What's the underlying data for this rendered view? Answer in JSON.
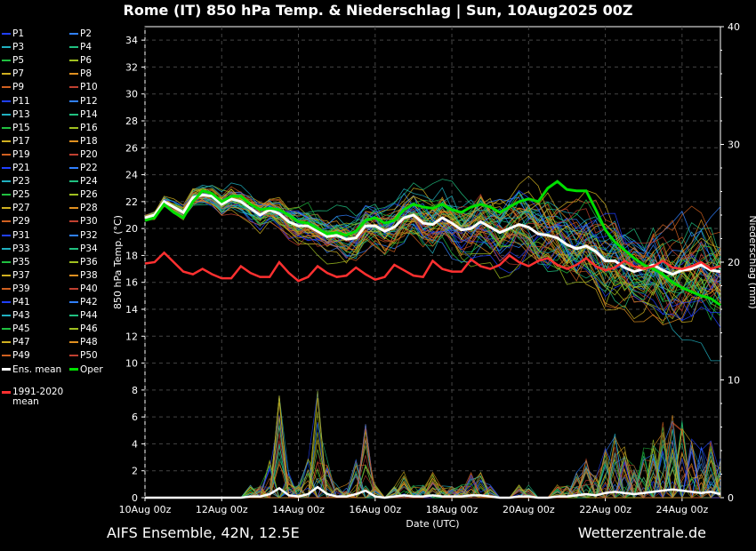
{
  "title": "Rome  (IT)  850 hPa Temp. & Niederschlag | Sun, 10Aug2025 00Z",
  "footer_left": "AIFS Ensemble, 42N, 12.5E",
  "footer_right": "Wetterzentrale.de",
  "legend": {
    "members": [
      "P1",
      "P2",
      "P3",
      "P4",
      "P5",
      "P6",
      "P7",
      "P8",
      "P9",
      "P10",
      "P11",
      "P12",
      "P13",
      "P14",
      "P15",
      "P16",
      "P17",
      "P18",
      "P19",
      "P20",
      "P21",
      "P22",
      "P23",
      "P24",
      "P25",
      "P26",
      "P27",
      "P28",
      "P29",
      "P30",
      "P31",
      "P32",
      "P33",
      "P34",
      "P35",
      "P36",
      "P37",
      "P38",
      "P39",
      "P40",
      "P41",
      "P42",
      "P43",
      "P44",
      "P45",
      "P46",
      "P47",
      "P48",
      "P49",
      "P50"
    ],
    "ens_mean": "Ens. mean",
    "oper": "Oper",
    "clim_line1": "1991-2020",
    "clim_line2": "mean"
  },
  "colors": {
    "ens_mean": "#ffffff",
    "oper": "#00e000",
    "clim": "#ff3030",
    "member_palette": [
      "#2040ff",
      "#3080ff",
      "#20b0c0",
      "#20c080",
      "#20c040",
      "#a0c020",
      "#d0b020",
      "#e09020",
      "#d06020",
      "#c04030"
    ]
  },
  "chart_data": {
    "type": "line",
    "x_ticks": [
      "10Aug 00z",
      "12Aug 00z",
      "14Aug 00z",
      "16Aug 00z",
      "18Aug 00z",
      "20Aug 00z",
      "22Aug 00z",
      "24Aug 00z"
    ],
    "xlabel": "Date (UTC)",
    "ylabel_left": "850 hPa Temp. (°C)",
    "ylabel_right": "Niederschlag (mm)",
    "y_left_ticks": [
      0,
      2,
      4,
      6,
      8,
      10,
      12,
      14,
      16,
      18,
      20,
      22,
      24,
      26,
      28,
      30,
      32,
      34
    ],
    "y_right_ticks": [
      0,
      10,
      20,
      30,
      40
    ],
    "y_left_range": [
      0,
      35
    ],
    "y_right_range": [
      0,
      40
    ],
    "x_range_days": [
      0,
      15
    ],
    "grid": true,
    "series": [
      {
        "name": "Ens. mean",
        "values": [
          20.8,
          21.0,
          22.0,
          21.6,
          21.2,
          22.3,
          22.5,
          22.4,
          21.8,
          22.2,
          22.0,
          21.5,
          21.0,
          21.4,
          21.1,
          20.5,
          20.2,
          20.2,
          19.8,
          19.4,
          19.5,
          19.2,
          19.3,
          20.2,
          20.2,
          19.8,
          20.1,
          20.8,
          21.0,
          20.4,
          20.3,
          20.8,
          20.4,
          19.9,
          20.0,
          20.5,
          20.1,
          19.7,
          20.0,
          20.3,
          20.1,
          19.6,
          19.5,
          19.3,
          18.8,
          18.5,
          18.7,
          18.3,
          17.6,
          17.6,
          17.1,
          16.8,
          17.0,
          17.3,
          16.9,
          16.6,
          16.9,
          17.0,
          17.3,
          16.9,
          16.8
        ]
      },
      {
        "name": "Oper",
        "values": [
          20.6,
          20.8,
          21.8,
          21.2,
          20.8,
          22.0,
          22.8,
          22.6,
          22.0,
          22.4,
          22.4,
          21.8,
          21.4,
          21.5,
          21.4,
          21.0,
          20.5,
          20.4,
          20.0,
          19.6,
          19.7,
          19.5,
          19.8,
          20.6,
          20.8,
          20.4,
          20.6,
          21.4,
          21.8,
          21.6,
          21.5,
          21.8,
          21.4,
          21.2,
          21.6,
          21.8,
          21.6,
          21.2,
          21.6,
          22.0,
          22.2,
          22.0,
          23.0,
          23.5,
          22.9,
          22.8,
          22.8,
          21.4,
          19.9,
          19.0,
          18.4,
          17.8,
          17.3,
          17.0,
          16.6,
          16.0,
          15.6,
          15.3,
          15.0,
          14.8,
          14.3
        ]
      },
      {
        "name": "1991-2020 mean",
        "values": [
          17.4,
          17.5,
          18.2,
          17.5,
          16.8,
          16.6,
          17.0,
          16.6,
          16.3,
          16.3,
          17.2,
          16.7,
          16.4,
          16.4,
          17.5,
          16.7,
          16.1,
          16.4,
          17.2,
          16.7,
          16.4,
          16.5,
          17.1,
          16.6,
          16.2,
          16.4,
          17.3,
          16.9,
          16.5,
          16.4,
          17.6,
          17.0,
          16.8,
          16.8,
          17.7,
          17.2,
          17.0,
          17.3,
          18.0,
          17.5,
          17.2,
          17.6,
          17.8,
          17.3,
          17.0,
          17.3,
          17.8,
          17.2,
          16.9,
          17.1,
          17.6,
          17.2,
          17.0,
          17.2,
          17.6,
          17.1,
          17.0,
          17.2,
          17.5,
          17.0,
          17.2
        ]
      }
    ],
    "precip_ens_mean": [
      0,
      0,
      0,
      0,
      0,
      0,
      0,
      0,
      0,
      0,
      0,
      0.1,
      0.1,
      0.3,
      0.8,
      0.2,
      0.1,
      0.3,
      0.9,
      0.3,
      0.1,
      0.1,
      0.3,
      0.6,
      0.1,
      0,
      0.1,
      0.2,
      0.1,
      0.1,
      0.2,
      0.1,
      0.1,
      0.1,
      0.2,
      0.2,
      0.1,
      0,
      0,
      0.1,
      0.1,
      0,
      0,
      0.1,
      0.1,
      0.2,
      0.3,
      0.2,
      0.4,
      0.5,
      0.4,
      0.3,
      0.4,
      0.5,
      0.6,
      0.7,
      0.6,
      0.5,
      0.4,
      0.5,
      0.3
    ]
  }
}
